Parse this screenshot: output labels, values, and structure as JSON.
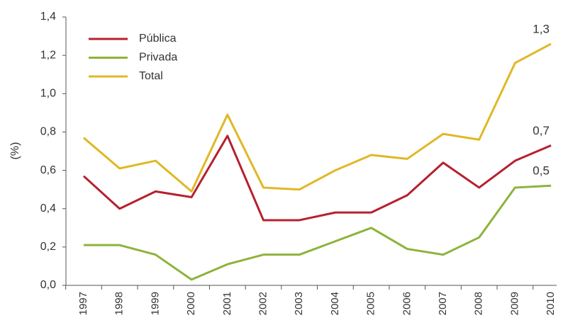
{
  "chart_data": {
    "type": "line",
    "y_label": "(%)",
    "categories": [
      "1997",
      "1998",
      "1999",
      "2000",
      "2001",
      "2002",
      "2003",
      "2004",
      "2005",
      "2006",
      "2007",
      "2008",
      "2009",
      "2010"
    ],
    "series": [
      {
        "name": "Pública",
        "color": "#b5212e",
        "values": [
          0.57,
          0.4,
          0.49,
          0.46,
          0.78,
          0.34,
          0.34,
          0.38,
          0.38,
          0.47,
          0.64,
          0.51,
          0.65,
          0.73
        ],
        "value_labels": [
          null,
          null,
          null,
          null,
          null,
          null,
          null,
          null,
          null,
          null,
          null,
          null,
          null,
          "0,7"
        ]
      },
      {
        "name": "Privada",
        "color": "#8db33a",
        "values": [
          0.21,
          0.21,
          0.16,
          0.03,
          0.11,
          0.16,
          0.16,
          0.23,
          0.3,
          0.19,
          0.16,
          0.25,
          0.51,
          0.52
        ],
        "value_labels": [
          null,
          null,
          null,
          null,
          null,
          null,
          null,
          null,
          null,
          null,
          null,
          null,
          null,
          "0,5"
        ]
      },
      {
        "name": "Total",
        "color": "#e0b825",
        "values": [
          0.77,
          0.61,
          0.65,
          0.49,
          0.89,
          0.51,
          0.5,
          0.6,
          0.68,
          0.66,
          0.79,
          0.76,
          1.16,
          1.26
        ],
        "value_labels": [
          null,
          null,
          null,
          null,
          null,
          null,
          null,
          null,
          null,
          null,
          null,
          null,
          null,
          "1,3"
        ]
      }
    ],
    "ylim": [
      0,
      1.4
    ],
    "yticks": [
      {
        "value": 0,
        "label": "0,0"
      },
      {
        "value": 0.2,
        "label": "0,2"
      },
      {
        "value": 0.4,
        "label": "0,4"
      },
      {
        "value": 0.6,
        "label": "0,6"
      },
      {
        "value": 0.8,
        "label": "0,8"
      },
      {
        "value": 1.0,
        "label": "1,0"
      },
      {
        "value": 1.2,
        "label": "1,2"
      },
      {
        "value": 1.4,
        "label": "1,4"
      }
    ],
    "grid": false,
    "legend": "upper left"
  }
}
